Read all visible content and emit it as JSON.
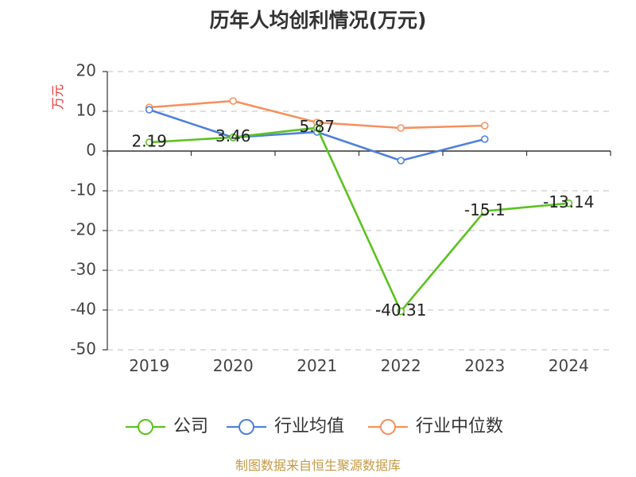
{
  "footer": "制图数据来自恒生聚源数据库",
  "colors": {
    "axis_line": "#333333",
    "grid_line": "#cccccc",
    "axis_name": "#e53935",
    "footer": "#c49a45",
    "marker_fill": "#ffffff"
  },
  "chart_data": {
    "type": "line",
    "title": "历年人均创利情况(万元)",
    "xlabel": "",
    "ylabel": "万元",
    "categories": [
      "2019",
      "2020",
      "2021",
      "2022",
      "2023",
      "2024"
    ],
    "ylim": [
      -50,
      20
    ],
    "yticks": [
      20,
      10,
      0,
      -10,
      -20,
      -30,
      -40,
      -50
    ],
    "grid": true,
    "legend_position": "bottom",
    "series": [
      {
        "name": "公司",
        "color": "#5cc21f",
        "values": [
          2.19,
          3.46,
          5.87,
          -40.31,
          -15.1,
          -13.14
        ],
        "data_labels": [
          "2.19",
          "3.46",
          "5.87",
          "-40.31",
          "-15.1",
          "-13.14"
        ]
      },
      {
        "name": "行业均值",
        "color": "#4f80dc",
        "values": [
          10.4,
          3.4,
          4.8,
          -2.4,
          3.0,
          null
        ]
      },
      {
        "name": "行业中位数",
        "color": "#f6905e",
        "values": [
          11.0,
          12.6,
          7.2,
          5.8,
          6.4,
          null
        ]
      }
    ]
  }
}
